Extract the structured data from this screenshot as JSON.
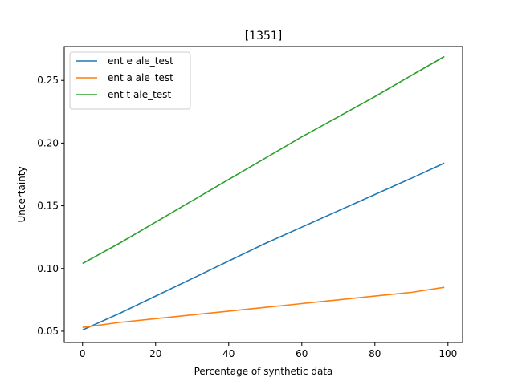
{
  "chart_data": {
    "type": "line",
    "title": "[1351]",
    "xlabel": "Percentage of synthetic data",
    "ylabel": "Uncertainty",
    "xlim": [
      -5,
      104
    ],
    "ylim": [
      0.041,
      0.277
    ],
    "xticks": [
      0,
      20,
      40,
      60,
      80,
      100
    ],
    "xtick_labels": [
      "0",
      "20",
      "40",
      "60",
      "80",
      "100"
    ],
    "yticks": [
      0.05,
      0.1,
      0.15,
      0.2,
      0.25
    ],
    "ytick_labels": [
      "0.05",
      "0.10",
      "0.15",
      "0.20",
      "0.25"
    ],
    "grid": false,
    "legend_position": "upper-left",
    "series": [
      {
        "name": "ent e ale_test",
        "color": "#1f77b4",
        "x": [
          0,
          10,
          20,
          30,
          40,
          50,
          60,
          70,
          80,
          90,
          99
        ],
        "values": [
          0.051,
          0.064,
          0.078,
          0.092,
          0.106,
          0.12,
          0.133,
          0.146,
          0.159,
          0.172,
          0.184
        ]
      },
      {
        "name": "ent a ale_test",
        "color": "#ff7f0e",
        "x": [
          0,
          10,
          20,
          30,
          40,
          50,
          60,
          70,
          80,
          90,
          99
        ],
        "values": [
          0.053,
          0.057,
          0.06,
          0.063,
          0.066,
          0.069,
          0.072,
          0.075,
          0.078,
          0.081,
          0.085
        ]
      },
      {
        "name": "ent t ale_test",
        "color": "#2ca02c",
        "x": [
          0,
          10,
          20,
          30,
          40,
          50,
          60,
          70,
          80,
          90,
          99
        ],
        "values": [
          0.104,
          0.12,
          0.137,
          0.154,
          0.171,
          0.188,
          0.205,
          0.221,
          0.237,
          0.254,
          0.269
        ]
      }
    ]
  }
}
